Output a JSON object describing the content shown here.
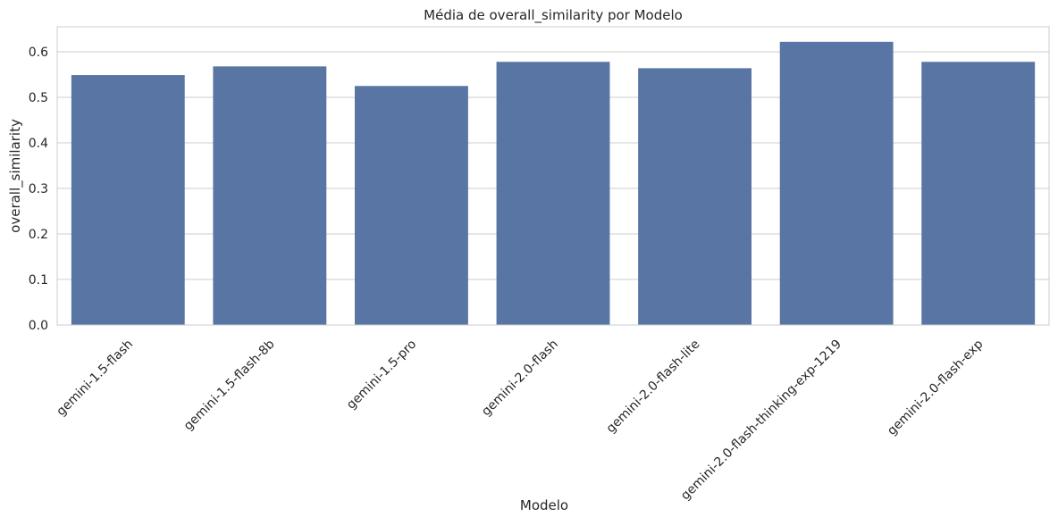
{
  "chart_data": {
    "type": "bar",
    "title": "Média de overall_similarity por Modelo",
    "xlabel": "Modelo",
    "ylabel": "overall_similarity",
    "categories": [
      "gemini-1.5-flash",
      "gemini-1.5-flash-8b",
      "gemini-1.5-pro",
      "gemini-2.0-flash",
      "gemini-2.0-flash-lite",
      "gemini-2.0-flash-thinking-exp-1219",
      "gemini-2.0-flash-exp"
    ],
    "values": [
      0.549,
      0.568,
      0.525,
      0.578,
      0.564,
      0.622,
      0.578
    ],
    "ylim": [
      0,
      0.655
    ],
    "yticks": [
      0.0,
      0.1,
      0.2,
      0.3,
      0.4,
      0.5,
      0.6
    ],
    "ytick_labels": [
      "0.0",
      "0.1",
      "0.2",
      "0.3",
      "0.4",
      "0.5",
      "0.6"
    ],
    "grid": true,
    "colors": {
      "bar": "#5975a4",
      "grid": "#cccccc",
      "axis": "#cccccc",
      "text": "#262626",
      "background": "#ffffff"
    }
  }
}
